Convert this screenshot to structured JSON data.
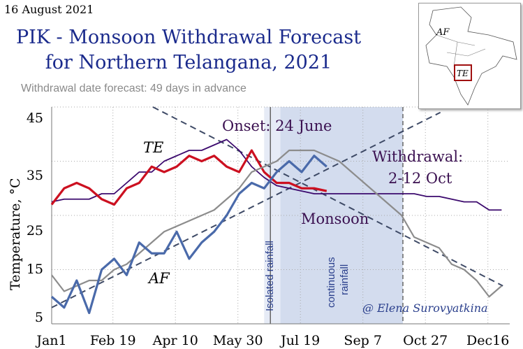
{
  "header": {
    "date": "16 August 2021",
    "title_line1": "PIK - Monsoon Withdrawal Forecast",
    "title_line2": "for Northern Telangana, 2021",
    "subtitle": "Withdrawal date forecast: 49 days in advance"
  },
  "map": {
    "label_af": "AF",
    "label_te": "TE",
    "highlight_color": "#a01010"
  },
  "chart_data": {
    "type": "line",
    "ylabel": "Temperature, °C",
    "ylim": [
      5,
      45
    ],
    "yticks": [
      45,
      35,
      25,
      15,
      5
    ],
    "xticks": [
      "Jan1",
      "Feb 19",
      "Apr 10",
      "May 30",
      "Jul 19",
      "Sep 7",
      "Oct 27",
      "Dec16"
    ],
    "xtick_days": [
      0,
      49,
      99,
      149,
      199,
      249,
      299,
      349
    ],
    "grid": true,
    "x_days": [
      0,
      10,
      20,
      30,
      40,
      50,
      60,
      70,
      80,
      90,
      100,
      110,
      120,
      130,
      140,
      150,
      160,
      170,
      180,
      190,
      200,
      210,
      220,
      230,
      240,
      250,
      260,
      270,
      280,
      290,
      300,
      310,
      320,
      330,
      340,
      350,
      360
    ],
    "series": [
      {
        "key": "te_climate",
        "color": "#3c0a6e",
        "values": [
          27.5,
          28,
          28,
          28,
          29,
          29,
          31,
          33,
          33,
          35,
          36,
          37,
          37,
          38,
          39,
          37,
          34,
          32,
          30.5,
          30,
          29.5,
          29,
          29,
          29,
          29,
          29,
          29,
          29,
          29,
          29,
          28.5,
          28.5,
          28,
          27.5,
          27.5,
          26,
          26
        ]
      },
      {
        "key": "te_2021",
        "color": "#cc1020",
        "values": [
          27,
          30,
          31,
          30,
          28,
          27,
          30,
          31,
          34,
          33,
          34,
          36,
          35,
          36,
          34,
          33,
          37,
          33,
          31,
          31,
          30,
          30,
          29.5
        ]
      },
      {
        "key": "af_climate",
        "color": "#8c8c8c",
        "values": [
          14,
          11,
          12,
          13,
          13,
          15,
          16,
          18,
          20,
          22,
          23,
          24,
          25,
          26,
          28,
          30,
          33,
          34,
          35,
          37,
          37,
          37,
          36,
          35,
          33,
          31,
          29,
          27,
          25,
          21,
          20,
          19,
          16,
          15,
          13,
          10,
          12
        ]
      },
      {
        "key": "af_2021",
        "color": "#4a6aaa",
        "values": [
          10,
          8,
          13,
          7,
          15,
          17,
          14,
          20,
          18,
          18,
          22,
          17,
          20,
          22,
          25,
          29,
          31,
          30,
          33,
          35,
          33,
          36,
          34
        ]
      }
    ],
    "trend_lines": [
      {
        "from": [
          0,
          8
        ],
        "to": [
          311,
          44
        ]
      },
      {
        "from": [
          81,
          45
        ],
        "to": [
          361,
          12
        ]
      }
    ],
    "onset_day": 175,
    "withdrawal_marker_day": 281,
    "isolated_rainfall_days": [
      170,
      183
    ],
    "continuous_rainfall_days": [
      183,
      281
    ],
    "annotations": {
      "onset": "Onset: 24 June",
      "withdrawal_1": "Withdrawal:",
      "withdrawal_2": "2-12 Oct",
      "monsoon": "Monsoon",
      "te": "TE",
      "af": "AF",
      "isolated": "Isolated rainfall",
      "continuous_1": "continuous",
      "continuous_2": "rainfall",
      "credit": "@ Elena Surovyatkina"
    }
  }
}
